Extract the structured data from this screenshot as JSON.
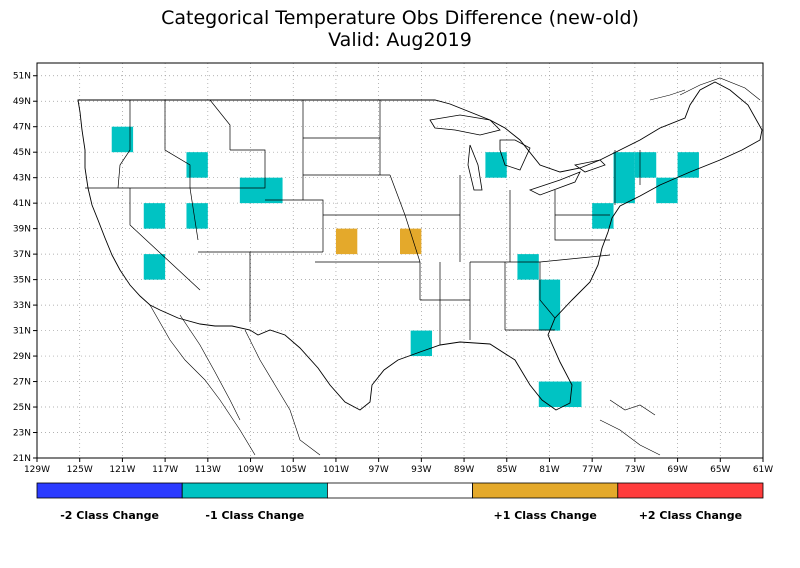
{
  "title": {
    "line1": "Categorical Temperature Obs Difference (new-old)",
    "line2": "Valid: Aug2019"
  },
  "map": {
    "lon_range": [
      -129,
      -61
    ],
    "lat_range": [
      21,
      52
    ],
    "gridlines": "dotted",
    "lon_ticks": [
      {
        "value": -129,
        "label": "129W"
      },
      {
        "value": -125,
        "label": "125W"
      },
      {
        "value": -121,
        "label": "121W"
      },
      {
        "value": -117,
        "label": "117W"
      },
      {
        "value": -113,
        "label": "113W"
      },
      {
        "value": -109,
        "label": "109W"
      },
      {
        "value": -105,
        "label": "105W"
      },
      {
        "value": -101,
        "label": "101W"
      },
      {
        "value": -97,
        "label": "97W"
      },
      {
        "value": -93,
        "label": "93W"
      },
      {
        "value": -89,
        "label": "89W"
      },
      {
        "value": -85,
        "label": "85W"
      },
      {
        "value": -81,
        "label": "81W"
      },
      {
        "value": -77,
        "label": "77W"
      },
      {
        "value": -73,
        "label": "73W"
      },
      {
        "value": -69,
        "label": "69W"
      },
      {
        "value": -65,
        "label": "65W"
      },
      {
        "value": -61,
        "label": "61W"
      }
    ],
    "lat_ticks": [
      {
        "value": 21,
        "label": "21N"
      },
      {
        "value": 23,
        "label": "23N"
      },
      {
        "value": 25,
        "label": "25N"
      },
      {
        "value": 27,
        "label": "27N"
      },
      {
        "value": 29,
        "label": "29N"
      },
      {
        "value": 31,
        "label": "31N"
      },
      {
        "value": 33,
        "label": "33N"
      },
      {
        "value": 35,
        "label": "35N"
      },
      {
        "value": 37,
        "label": "37N"
      },
      {
        "value": 39,
        "label": "39N"
      },
      {
        "value": 41,
        "label": "41N"
      },
      {
        "value": 43,
        "label": "43N"
      },
      {
        "value": 45,
        "label": "45N"
      },
      {
        "value": 47,
        "label": "47N"
      },
      {
        "value": 49,
        "label": "49N"
      },
      {
        "value": 51,
        "label": "51N"
      }
    ]
  },
  "cells": [
    {
      "lon": [
        -122,
        -120
      ],
      "lat": [
        45,
        47
      ],
      "class": "-1"
    },
    {
      "lon": [
        -115,
        -113
      ],
      "lat": [
        43,
        45
      ],
      "class": "-1"
    },
    {
      "lon": [
        -110,
        -106
      ],
      "lat": [
        41,
        43
      ],
      "class": "-1"
    },
    {
      "lon": [
        -119,
        -117
      ],
      "lat": [
        39,
        41
      ],
      "class": "-1"
    },
    {
      "lon": [
        -115,
        -113
      ],
      "lat": [
        39,
        41
      ],
      "class": "-1"
    },
    {
      "lon": [
        -119,
        -117
      ],
      "lat": [
        35,
        37
      ],
      "class": "-1"
    },
    {
      "lon": [
        -101,
        -99
      ],
      "lat": [
        37,
        39
      ],
      "class": "+1"
    },
    {
      "lon": [
        -95,
        -93
      ],
      "lat": [
        37,
        39
      ],
      "class": "+1"
    },
    {
      "lon": [
        -94,
        -92
      ],
      "lat": [
        29,
        31
      ],
      "class": "-1"
    },
    {
      "lon": [
        -87,
        -85
      ],
      "lat": [
        43,
        45
      ],
      "class": "-1"
    },
    {
      "lon": [
        -84,
        -82
      ],
      "lat": [
        35,
        37
      ],
      "class": "-1"
    },
    {
      "lon": [
        -82,
        -80
      ],
      "lat": [
        31,
        35
      ],
      "class": "-1"
    },
    {
      "lon": [
        -82,
        -78
      ],
      "lat": [
        25,
        27
      ],
      "class": "-1"
    },
    {
      "lon": [
        -77,
        -75
      ],
      "lat": [
        39,
        41
      ],
      "class": "-1"
    },
    {
      "lon": [
        -75,
        -73
      ],
      "lat": [
        41,
        45
      ],
      "class": "-1"
    },
    {
      "lon": [
        -73,
        -71
      ],
      "lat": [
        43,
        45
      ],
      "class": "-1"
    },
    {
      "lon": [
        -71,
        -69
      ],
      "lat": [
        41,
        43
      ],
      "class": "-1"
    },
    {
      "lon": [
        -69,
        -67
      ],
      "lat": [
        43,
        45
      ],
      "class": "-1"
    }
  ],
  "legend": {
    "items": [
      {
        "class": "-2",
        "color": "#2b3bff",
        "label": "-2 Class Change"
      },
      {
        "class": "-1",
        "color": "#00c3c3",
        "label": "-1 Class Change"
      },
      {
        "class": "0",
        "color": "#ffffff",
        "label": ""
      },
      {
        "class": "+1",
        "color": "#e4a92b",
        "label": "+1 Class Change"
      },
      {
        "class": "+2",
        "color": "#ff3c3c",
        "label": "+2 Class Change"
      }
    ]
  }
}
